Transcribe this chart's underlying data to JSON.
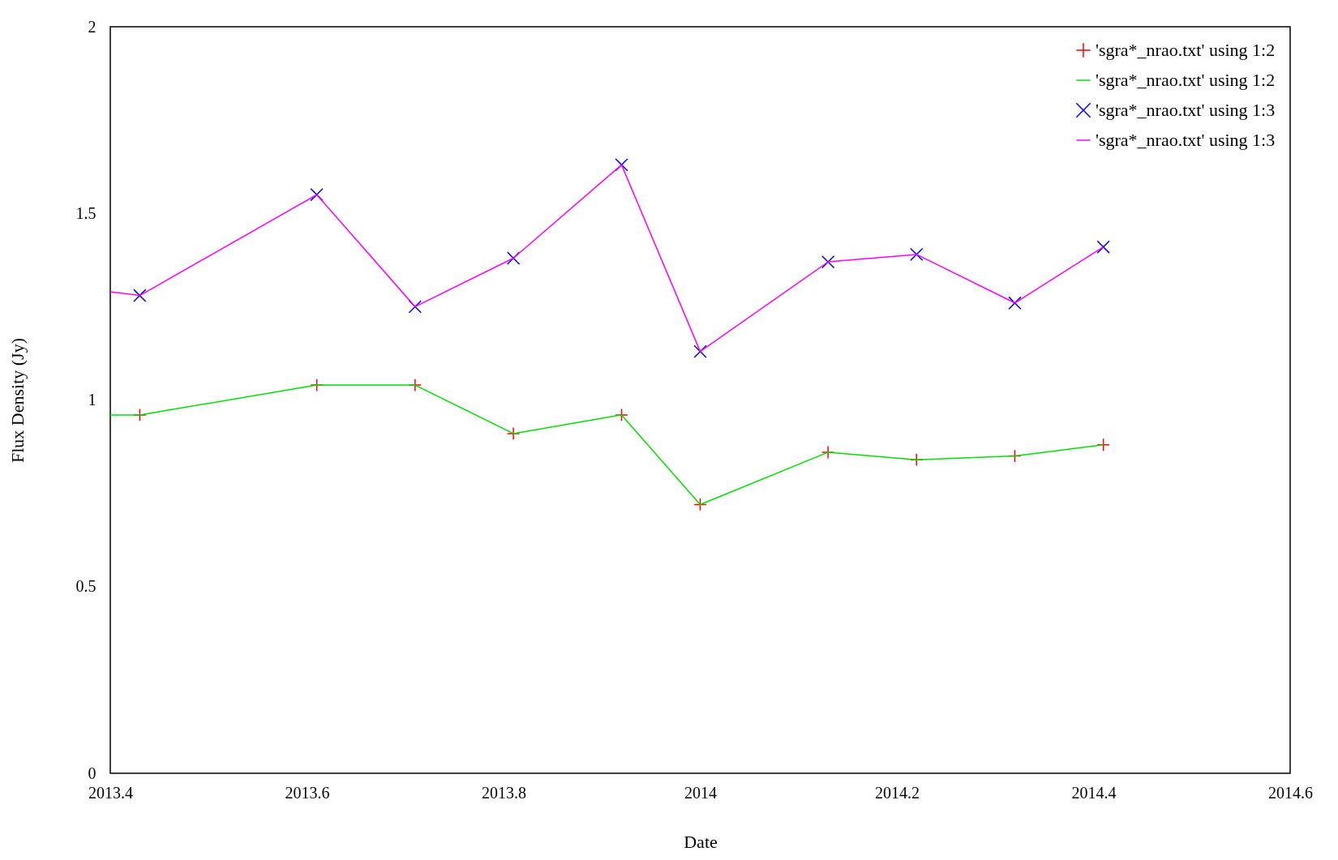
{
  "chart_data": {
    "type": "scatter",
    "xlabel": "Date",
    "ylabel": "Flux Density (Jy)",
    "xlim": [
      2013.4,
      2014.6
    ],
    "xticks": [
      2013.4,
      2013.6,
      2013.8,
      2014,
      2014.2,
      2014.4,
      2014.6
    ],
    "ylim": [
      0,
      2
    ],
    "yticks": [
      0,
      0.5,
      1,
      1.5,
      2
    ],
    "grid": false,
    "legend": "top right",
    "series": [
      {
        "name": "'sgra*_nrao.txt' using 1:2",
        "marker": "plus",
        "color": "#ff0000",
        "x": [
          2013.43,
          2013.61,
          2013.71,
          2013.81,
          2013.92,
          2014.0,
          2014.13,
          2014.22,
          2014.32,
          2014.41
        ],
        "values": [
          0.96,
          1.04,
          1.04,
          0.91,
          0.96,
          0.72,
          0.86,
          0.84,
          0.85,
          0.88
        ]
      },
      {
        "name": "'sgra*_nrao.txt' using 1:2",
        "type": "line",
        "color": "#00e000",
        "x": [
          2013.4,
          2013.43,
          2013.61,
          2013.71,
          2013.81,
          2013.92,
          2014.0,
          2014.13,
          2014.22,
          2014.32,
          2014.41
        ],
        "values": [
          0.96,
          0.96,
          1.04,
          1.04,
          0.91,
          0.96,
          0.72,
          0.86,
          0.84,
          0.85,
          0.88
        ]
      },
      {
        "name": "'sgra*_nrao.txt' using 1:3",
        "marker": "cross",
        "color": "#0000ff",
        "x": [
          2013.43,
          2013.61,
          2013.71,
          2013.81,
          2013.92,
          2014.0,
          2014.13,
          2014.22,
          2014.32,
          2014.41
        ],
        "values": [
          1.28,
          1.55,
          1.25,
          1.38,
          1.63,
          1.13,
          1.37,
          1.39,
          1.26,
          1.41
        ]
      },
      {
        "name": "'sgra*_nrao.txt' using 1:3",
        "type": "line",
        "color": "#ff00ff",
        "x": [
          2013.4,
          2013.43,
          2013.61,
          2013.71,
          2013.81,
          2013.92,
          2014.0,
          2014.13,
          2014.22,
          2014.32,
          2014.41
        ],
        "values": [
          1.29,
          1.28,
          1.55,
          1.25,
          1.38,
          1.63,
          1.13,
          1.37,
          1.39,
          1.26,
          1.41
        ]
      }
    ]
  }
}
